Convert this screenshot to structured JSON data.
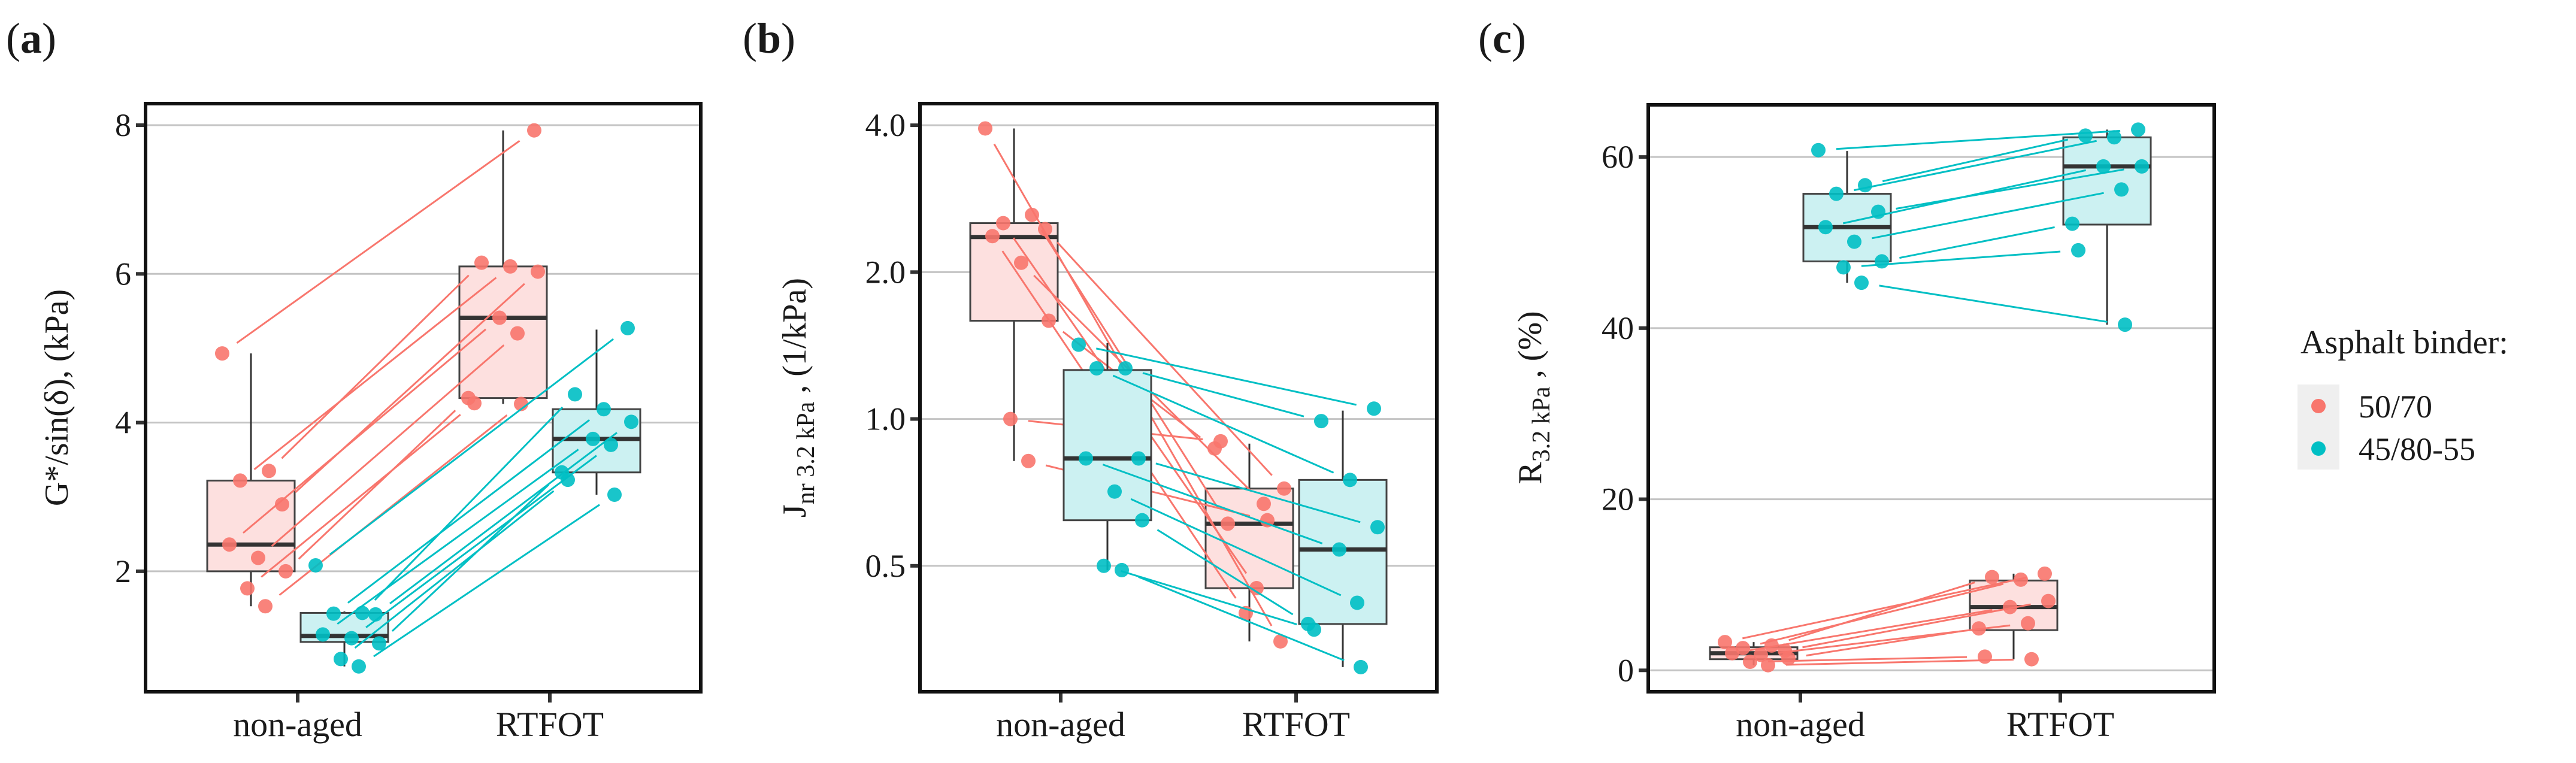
{
  "colors": {
    "binder_50_70": "#F8766D",
    "binder_45_80_55": "#00BFC4",
    "box_fill_50_70": "#FDE0DF",
    "box_fill_45_80_55": "#CCF1F2",
    "grid": "#c4c4c4",
    "legend_bg": "#EFEFEF"
  },
  "legend": {
    "title": "Asphalt binder:",
    "items": [
      "50/70",
      "45/80-55"
    ]
  },
  "chart_data": [
    {
      "panel_label": "a",
      "type": "box+paired-scatter",
      "scale": "linear",
      "ylim": [
        0.38,
        8.29
      ],
      "ylabel": {
        "main": "G*/sin(δ), (kPa)",
        "sub": "",
        "rest": ""
      },
      "yticks": [
        2,
        4,
        6,
        8
      ],
      "ytick_labels": [
        "2",
        "4",
        "6",
        "8"
      ],
      "categories": [
        "non-aged",
        "RTFOT"
      ],
      "grid": true,
      "series": [
        {
          "name": "50/70",
          "non_aged": [
            4.93,
            3.35,
            3.22,
            2.9,
            2.36,
            2.18,
            2.0,
            1.77,
            1.53
          ],
          "rtfot": [
            7.93,
            6.15,
            6.1,
            6.03,
            5.41,
            5.2,
            4.33,
            4.26,
            4.25
          ],
          "box_non_aged": [
            1.53,
            2.0,
            2.36,
            3.22,
            4.93
          ],
          "box_rtfot": [
            4.25,
            4.33,
            5.41,
            6.1,
            7.93
          ]
        },
        {
          "name": "45/80-55",
          "non_aged": [
            2.08,
            1.44,
            1.43,
            1.42,
            1.15,
            1.1,
            1.03,
            0.82,
            0.72
          ],
          "rtfot": [
            5.27,
            4.38,
            4.18,
            4.01,
            3.78,
            3.7,
            3.33,
            3.23,
            3.03
          ],
          "box_non_aged": [
            0.72,
            1.05,
            1.13,
            1.44,
            1.46
          ],
          "box_rtfot": [
            3.03,
            3.33,
            3.78,
            4.18,
            5.25
          ]
        }
      ]
    },
    {
      "panel_label": "b",
      "type": "box+paired-scatter",
      "scale": "log2",
      "ylim": [
        0.276,
        4.43
      ],
      "ylabel": {
        "main": "J",
        "sub": "nr 3.2 kPa",
        "rest": " , (1/kPa)"
      },
      "yticks": [
        0.5,
        1.0,
        2.0,
        4.0
      ],
      "ytick_labels": [
        "0.5",
        "1.0",
        "2.0",
        "4.0"
      ],
      "categories": [
        "non-aged",
        "RTFOT"
      ],
      "grid": true,
      "series": [
        {
          "name": "50/70",
          "non_aged": [
            3.94,
            2.62,
            2.52,
            2.45,
            2.37,
            2.09,
            1.59,
            1.0,
            0.82
          ],
          "rtfot": [
            0.35,
            0.61,
            0.45,
            0.72,
            0.4,
            0.67,
            0.87,
            0.9,
            0.62
          ],
          "box_non_aged": [
            0.82,
            1.59,
            2.36,
            2.52,
            3.94
          ],
          "box_rtfot": [
            0.35,
            0.45,
            0.61,
            0.72,
            0.89
          ]
        },
        {
          "name": "45/80-55",
          "non_aged": [
            1.42,
            1.27,
            1.27,
            0.83,
            0.83,
            0.71,
            0.62,
            0.5,
            0.49
          ],
          "rtfot": [
            1.05,
            0.99,
            0.75,
            0.6,
            0.54,
            0.42,
            0.38,
            0.37,
            0.31
          ],
          "box_non_aged": [
            0.49,
            0.62,
            0.83,
            1.26,
            1.43
          ],
          "box_rtfot": [
            0.31,
            0.38,
            0.54,
            0.75,
            1.04
          ]
        }
      ]
    },
    {
      "panel_label": "c",
      "type": "box+paired-scatter",
      "scale": "linear",
      "ylim": [
        -2.5,
        66.1
      ],
      "ylabel": {
        "main": "R",
        "sub": "3.2 kPa",
        "rest": " , (%)"
      },
      "yticks": [
        0,
        20,
        40,
        60
      ],
      "ytick_labels": [
        "0",
        "20",
        "40",
        "60"
      ],
      "categories": [
        "non-aged",
        "RTFOT"
      ],
      "grid": true,
      "series": [
        {
          "name": "50/70",
          "non_aged": [
            3.3,
            2.9,
            2.6,
            2.3,
            2.0,
            1.8,
            1.4,
            1.0,
            0.6
          ],
          "rtfot": [
            11.3,
            10.9,
            10.6,
            8.1,
            7.4,
            5.5,
            4.9,
            1.6,
            1.3
          ],
          "box_non_aged": [
            0.6,
            1.3,
            2.0,
            2.7,
            3.3
          ],
          "box_rtfot": [
            1.3,
            4.7,
            7.4,
            10.5,
            11.3
          ]
        },
        {
          "name": "45/80-55",
          "non_aged": [
            60.8,
            56.7,
            55.7,
            53.6,
            51.8,
            50.1,
            47.8,
            47.1,
            45.3
          ],
          "rtfot": [
            63.2,
            62.5,
            62.3,
            58.9,
            58.9,
            56.2,
            52.2,
            49.1,
            40.4
          ],
          "box_non_aged": [
            45.3,
            47.8,
            51.8,
            55.7,
            60.7
          ],
          "box_rtfot": [
            40.4,
            52.1,
            58.9,
            62.3,
            63.2
          ]
        }
      ]
    }
  ]
}
